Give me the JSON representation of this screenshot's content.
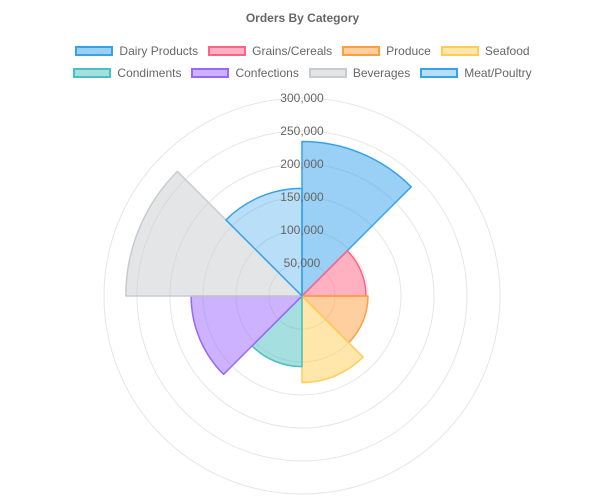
{
  "chart_data": {
    "type": "polarArea",
    "title": "Orders By Category",
    "categories": [
      "Dairy Products",
      "Grains/Cereals",
      "Produce",
      "Seafood",
      "Condiments",
      "Confections",
      "Beverages",
      "Meat/Poultry"
    ],
    "values": [
      234000,
      97000,
      100000,
      131000,
      107000,
      168000,
      267000,
      163000
    ],
    "colors": [
      {
        "border": "#36a2eb",
        "fill": "rgba(54,162,235,0.5)"
      },
      {
        "border": "#ff6384",
        "fill": "rgba(255,99,132,0.5)"
      },
      {
        "border": "#ff9f40",
        "fill": "rgba(255,159,64,0.5)"
      },
      {
        "border": "#ffcd56",
        "fill": "rgba(255,205,86,0.5)"
      },
      {
        "border": "#4bc0c0",
        "fill": "rgba(75,192,192,0.5)"
      },
      {
        "border": "#9966ff",
        "fill": "rgba(153,102,255,0.5)"
      },
      {
        "border": "#c9cbcf",
        "fill": "rgba(201,203,207,0.5)"
      },
      {
        "border": "#36a2eb",
        "fill": "rgba(54,162,235,0.35)"
      }
    ],
    "r_max": 300000,
    "r_ticks": [
      50000,
      100000,
      150000,
      200000,
      250000,
      300000
    ],
    "r_tick_labels": [
      "50,000",
      "100,000",
      "150,000",
      "200,000",
      "250,000",
      "300,000"
    ],
    "legend_position": "top",
    "grid": true
  }
}
